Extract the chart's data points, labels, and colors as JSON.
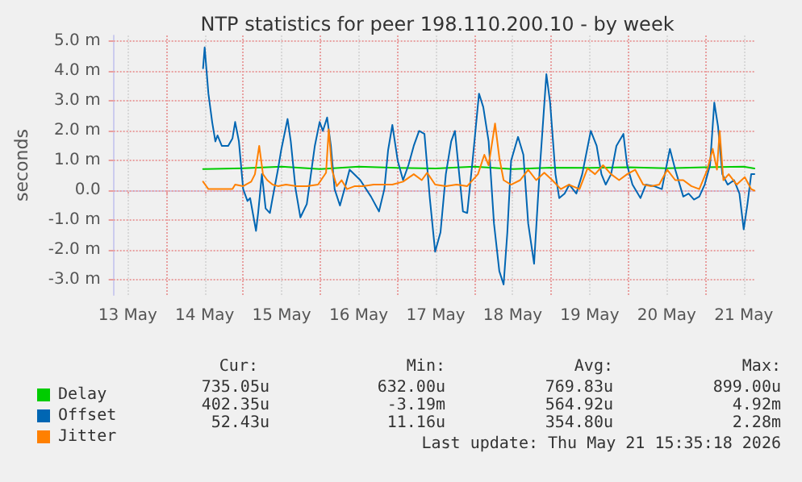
{
  "chart_data": {
    "type": "line",
    "title": "NTP statistics for peer 198.110.200.10 - by week",
    "ylabel": "seconds",
    "xlim": [
      "2026-05-13T07:35",
      "2026-05-21T15:35"
    ],
    "xticks": [
      {
        "value": "2026-05-13T12:00",
        "label": "13 May"
      },
      {
        "value": "2026-05-14T00:00",
        "label": null
      },
      {
        "value": "2026-05-14T12:00",
        "label": "14 May"
      },
      {
        "value": "2026-05-15T00:00",
        "label": null
      },
      {
        "value": "2026-05-15T12:00",
        "label": "15 May"
      },
      {
        "value": "2026-05-16T00:00",
        "label": null
      },
      {
        "value": "2026-05-16T12:00",
        "label": "16 May"
      },
      {
        "value": "2026-05-17T00:00",
        "label": null
      },
      {
        "value": "2026-05-17T12:00",
        "label": "17 May"
      },
      {
        "value": "2026-05-18T00:00",
        "label": null
      },
      {
        "value": "2026-05-18T12:00",
        "label": "18 May"
      },
      {
        "value": "2026-05-19T00:00",
        "label": null
      },
      {
        "value": "2026-05-19T12:00",
        "label": "19 May"
      },
      {
        "value": "2026-05-20T00:00",
        "label": null
      },
      {
        "value": "2026-05-20T12:00",
        "label": "20 May"
      },
      {
        "value": "2026-05-21T00:00",
        "label": null
      },
      {
        "value": "2026-05-21T12:00",
        "label": "21 May"
      }
    ],
    "ylim": [
      -3.5,
      5.2
    ],
    "yticks": [
      {
        "value": -3,
        "label": "-3.0 m"
      },
      {
        "value": -2,
        "label": "-2.0 m"
      },
      {
        "value": -1,
        "label": "-1.0 m"
      },
      {
        "value": 0,
        "label": "0.0"
      },
      {
        "value": 1,
        "label": "1.0 m"
      },
      {
        "value": 2,
        "label": "2.0 m"
      },
      {
        "value": 3,
        "label": "3.0 m"
      },
      {
        "value": 4,
        "label": "4.0 m"
      },
      {
        "value": 5,
        "label": "5.0 m"
      }
    ],
    "grid": true,
    "legend": "bottom left",
    "marker": "none",
    "line_style": "solid",
    "series": [
      {
        "name": "Delay",
        "color": "#00cc00",
        "x": [
          "2026-05-14T11:30",
          "2026-05-15T00:00",
          "2026-05-15T12:00",
          "2026-05-16T00:00",
          "2026-05-16T12:00",
          "2026-05-17T00:00",
          "2026-05-17T12:00",
          "2026-05-18T00:00",
          "2026-05-18T12:00",
          "2026-05-19T00:00",
          "2026-05-19T12:00",
          "2026-05-20T00:00",
          "2026-05-20T12:00",
          "2026-05-21T00:00",
          "2026-05-21T12:00",
          "2026-05-21T15:20"
        ],
        "values": [
          0.72,
          0.75,
          0.8,
          0.72,
          0.8,
          0.76,
          0.74,
          0.8,
          0.72,
          0.77,
          0.76,
          0.78,
          0.75,
          0.78,
          0.8,
          0.74
        ]
      },
      {
        "name": "Offset",
        "color": "#0066b3",
        "x": [
          "2026-05-14T11:30",
          "2026-05-14T12:00",
          "2026-05-14T13:10",
          "2026-05-14T14:20",
          "2026-05-14T15:20",
          "2026-05-14T16:00",
          "2026-05-14T17:20",
          "2026-05-14T19:20",
          "2026-05-14T20:40",
          "2026-05-14T21:30",
          "2026-05-14T22:40",
          "2026-05-15T00:00",
          "2026-05-15T01:20",
          "2026-05-15T02:10",
          "2026-05-15T03:00",
          "2026-05-15T04:00",
          "2026-05-15T04:40",
          "2026-05-15T05:50",
          "2026-05-15T07:00",
          "2026-05-15T08:20",
          "2026-05-15T09:10",
          "2026-05-15T10:50",
          "2026-05-15T11:50",
          "2026-05-15T13:50",
          "2026-05-15T14:50",
          "2026-05-15T16:20",
          "2026-05-15T17:50",
          "2026-05-15T19:50",
          "2026-05-15T22:20",
          "2026-05-15T23:50",
          "2026-05-16T00:50",
          "2026-05-16T02:10",
          "2026-05-16T03:20",
          "2026-05-16T04:30",
          "2026-05-16T06:10",
          "2026-05-16T07:50",
          "2026-05-16T09:10",
          "2026-05-16T12:30",
          "2026-05-16T15:50",
          "2026-05-16T18:20",
          "2026-05-16T20:00",
          "2026-05-16T21:10",
          "2026-05-16T22:30",
          "2026-05-17T00:10",
          "2026-05-17T01:50",
          "2026-05-17T03:30",
          "2026-05-17T05:10",
          "2026-05-17T06:50",
          "2026-05-17T08:30",
          "2026-05-17T10:10",
          "2026-05-17T11:50",
          "2026-05-17T13:30",
          "2026-05-17T15:10",
          "2026-05-17T16:50",
          "2026-05-17T18:00",
          "2026-05-17T19:20",
          "2026-05-17T20:30",
          "2026-05-17T21:50",
          "2026-05-17T23:30",
          "2026-05-18T01:30",
          "2026-05-18T02:50",
          "2026-05-18T04:30",
          "2026-05-18T06:10",
          "2026-05-18T07:50",
          "2026-05-18T09:10",
          "2026-05-18T10:20",
          "2026-05-18T11:30",
          "2026-05-18T13:40",
          "2026-05-18T15:20",
          "2026-05-18T16:50",
          "2026-05-18T18:40",
          "2026-05-18T20:20",
          "2026-05-18T22:30",
          "2026-05-18T23:40",
          "2026-05-19T01:20",
          "2026-05-19T02:30",
          "2026-05-19T04:10",
          "2026-05-19T05:40",
          "2026-05-19T07:50",
          "2026-05-19T09:40",
          "2026-05-19T12:20",
          "2026-05-19T14:10",
          "2026-05-19T15:40",
          "2026-05-19T17:00",
          "2026-05-19T18:40",
          "2026-05-19T20:20",
          "2026-05-19T22:30",
          "2026-05-19T23:40",
          "2026-05-20T01:20",
          "2026-05-20T03:50",
          "2026-05-20T05:30",
          "2026-05-20T08:00",
          "2026-05-20T10:30",
          "2026-05-20T13:00",
          "2026-05-20T14:40",
          "2026-05-20T17:10",
          "2026-05-20T18:50",
          "2026-05-20T20:30",
          "2026-05-20T22:10",
          "2026-05-20T23:50",
          "2026-05-21T01:30",
          "2026-05-21T02:50",
          "2026-05-21T04:00",
          "2026-05-21T05:20",
          "2026-05-21T07:00",
          "2026-05-21T09:00",
          "2026-05-21T10:40",
          "2026-05-21T12:00",
          "2026-05-21T13:10",
          "2026-05-21T14:20",
          "2026-05-21T15:20"
        ],
        "values": [
          4.1,
          4.8,
          3.25,
          2.3,
          1.65,
          1.85,
          1.5,
          1.5,
          1.75,
          2.3,
          1.65,
          0.05,
          -0.35,
          -0.25,
          -0.75,
          -1.35,
          -0.75,
          0.55,
          -0.6,
          -0.75,
          -0.25,
          0.7,
          1.35,
          2.4,
          1.65,
          0.05,
          -0.9,
          -0.45,
          1.5,
          2.3,
          2.0,
          2.45,
          1.5,
          0.05,
          -0.5,
          0.15,
          0.7,
          0.35,
          -0.2,
          -0.7,
          0.05,
          1.35,
          2.2,
          1.0,
          0.35,
          0.85,
          1.5,
          2.0,
          1.9,
          -0.25,
          -2.05,
          -1.4,
          0.55,
          1.65,
          2.0,
          0.55,
          -0.7,
          -0.75,
          1.0,
          3.25,
          2.8,
          1.65,
          -1.1,
          -2.7,
          -3.15,
          -1.4,
          1.0,
          1.8,
          1.2,
          -1.1,
          -2.45,
          0.55,
          3.9,
          2.95,
          0.55,
          -0.25,
          -0.1,
          0.2,
          -0.1,
          0.55,
          2.0,
          1.5,
          0.55,
          0.2,
          0.55,
          1.5,
          1.9,
          0.85,
          0.2,
          -0.25,
          0.2,
          0.15,
          0.05,
          1.4,
          0.7,
          -0.2,
          -0.1,
          -0.3,
          -0.2,
          0.2,
          0.85,
          2.95,
          2.15,
          0.55,
          0.2,
          0.35,
          -0.1,
          -1.3,
          -0.45,
          0.55,
          0.55
        ]
      },
      {
        "name": "Jitter",
        "color": "#ff8000",
        "x": [
          "2026-05-14T11:30",
          "2026-05-14T13:10",
          "2026-05-14T17:20",
          "2026-05-14T20:40",
          "2026-05-14T21:30",
          "2026-05-15T00:00",
          "2026-05-15T02:30",
          "2026-05-15T03:40",
          "2026-05-15T05:00",
          "2026-05-15T06:10",
          "2026-05-15T07:30",
          "2026-05-15T09:10",
          "2026-05-15T10:50",
          "2026-05-15T13:20",
          "2026-05-15T16:40",
          "2026-05-15T19:50",
          "2026-05-15T23:20",
          "2026-05-16T01:50",
          "2026-05-16T02:40",
          "2026-05-16T03:40",
          "2026-05-16T05:10",
          "2026-05-16T06:40",
          "2026-05-16T08:20",
          "2026-05-16T10:50",
          "2026-05-16T13:20",
          "2026-05-16T16:40",
          "2026-05-16T20:00",
          "2026-05-16T22:30",
          "2026-05-17T01:50",
          "2026-05-17T05:10",
          "2026-05-17T07:40",
          "2026-05-17T09:20",
          "2026-05-17T11:50",
          "2026-05-17T15:10",
          "2026-05-17T18:30",
          "2026-05-17T21:50",
          "2026-05-18T01:10",
          "2026-05-18T03:10",
          "2026-05-18T04:30",
          "2026-05-18T06:30",
          "2026-05-18T07:50",
          "2026-05-18T09:10",
          "2026-05-18T11:30",
          "2026-05-18T14:20",
          "2026-05-18T16:50",
          "2026-05-18T19:20",
          "2026-05-18T21:50",
          "2026-05-19T00:20",
          "2026-05-19T03:00",
          "2026-05-19T05:30",
          "2026-05-19T08:50",
          "2026-05-19T11:20",
          "2026-05-19T13:40",
          "2026-05-19T16:10",
          "2026-05-19T18:40",
          "2026-05-19T21:10",
          "2026-05-19T23:40",
          "2026-05-20T02:10",
          "2026-05-20T04:40",
          "2026-05-20T07:10",
          "2026-05-20T09:40",
          "2026-05-20T12:10",
          "2026-05-20T14:40",
          "2026-05-20T17:10",
          "2026-05-20T19:40",
          "2026-05-20T22:10",
          "2026-05-21T00:40",
          "2026-05-21T02:20",
          "2026-05-21T03:40",
          "2026-05-21T04:30",
          "2026-05-21T05:40",
          "2026-05-21T07:20",
          "2026-05-21T09:50",
          "2026-05-21T12:20",
          "2026-05-21T14:20",
          "2026-05-21T15:20"
        ],
        "values": [
          0.3,
          0.05,
          0.05,
          0.05,
          0.2,
          0.15,
          0.3,
          0.55,
          1.5,
          0.55,
          0.35,
          0.2,
          0.15,
          0.2,
          0.15,
          0.15,
          0.2,
          0.6,
          2.05,
          0.7,
          0.15,
          0.35,
          0.05,
          0.15,
          0.15,
          0.2,
          0.2,
          0.2,
          0.3,
          0.55,
          0.35,
          0.6,
          0.2,
          0.15,
          0.2,
          0.15,
          0.55,
          1.2,
          0.85,
          2.25,
          1.1,
          0.35,
          0.2,
          0.35,
          0.7,
          0.35,
          0.6,
          0.35,
          0.05,
          0.2,
          0.05,
          0.75,
          0.55,
          0.85,
          0.55,
          0.35,
          0.55,
          0.7,
          0.2,
          0.15,
          0.2,
          0.7,
          0.35,
          0.35,
          0.15,
          0.05,
          0.7,
          1.4,
          0.7,
          2.0,
          0.35,
          0.55,
          0.2,
          0.45,
          0.05,
          0.0
        ]
      }
    ],
    "annotations": [
      "Cur:",
      "Min:",
      "Avg:",
      "Max:",
      "735.05u",
      "632.00u",
      "769.83u",
      "899.00u",
      "402.35u",
      "-3.19m",
      "564.92u",
      "4.92m",
      "52.43u",
      "11.16u",
      "354.80u",
      "2.28m",
      "Last update: Thu May 21 15:35:18 2026"
    ]
  }
}
